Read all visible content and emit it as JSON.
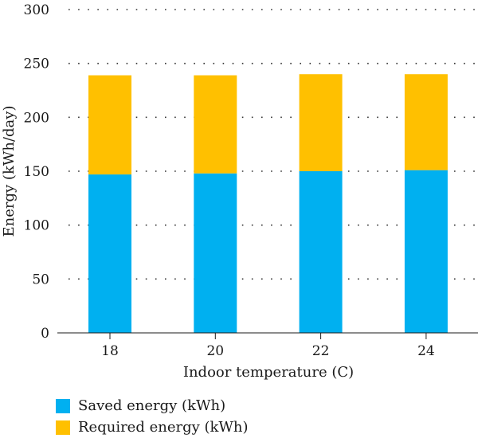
{
  "chart_data": {
    "type": "bar",
    "stacked": true,
    "categories": [
      "18",
      "20",
      "22",
      "24"
    ],
    "series": [
      {
        "name": "Saved energy (kWh)",
        "values": [
          147,
          148,
          150,
          151
        ],
        "color": "#00b0f0"
      },
      {
        "name": "Required energy (kWh)",
        "values": [
          92,
          91,
          90,
          89
        ],
        "color": "#ffc000"
      }
    ],
    "xlabel": "Indoor temperature (C)",
    "ylabel": "Energy (kWh/day)",
    "ylim": [
      0,
      300
    ],
    "yticks": [
      "0",
      "50",
      "100",
      "150",
      "200",
      "250",
      "300"
    ],
    "grid": "horizontal-dotted",
    "legend_position": "bottom-left"
  }
}
